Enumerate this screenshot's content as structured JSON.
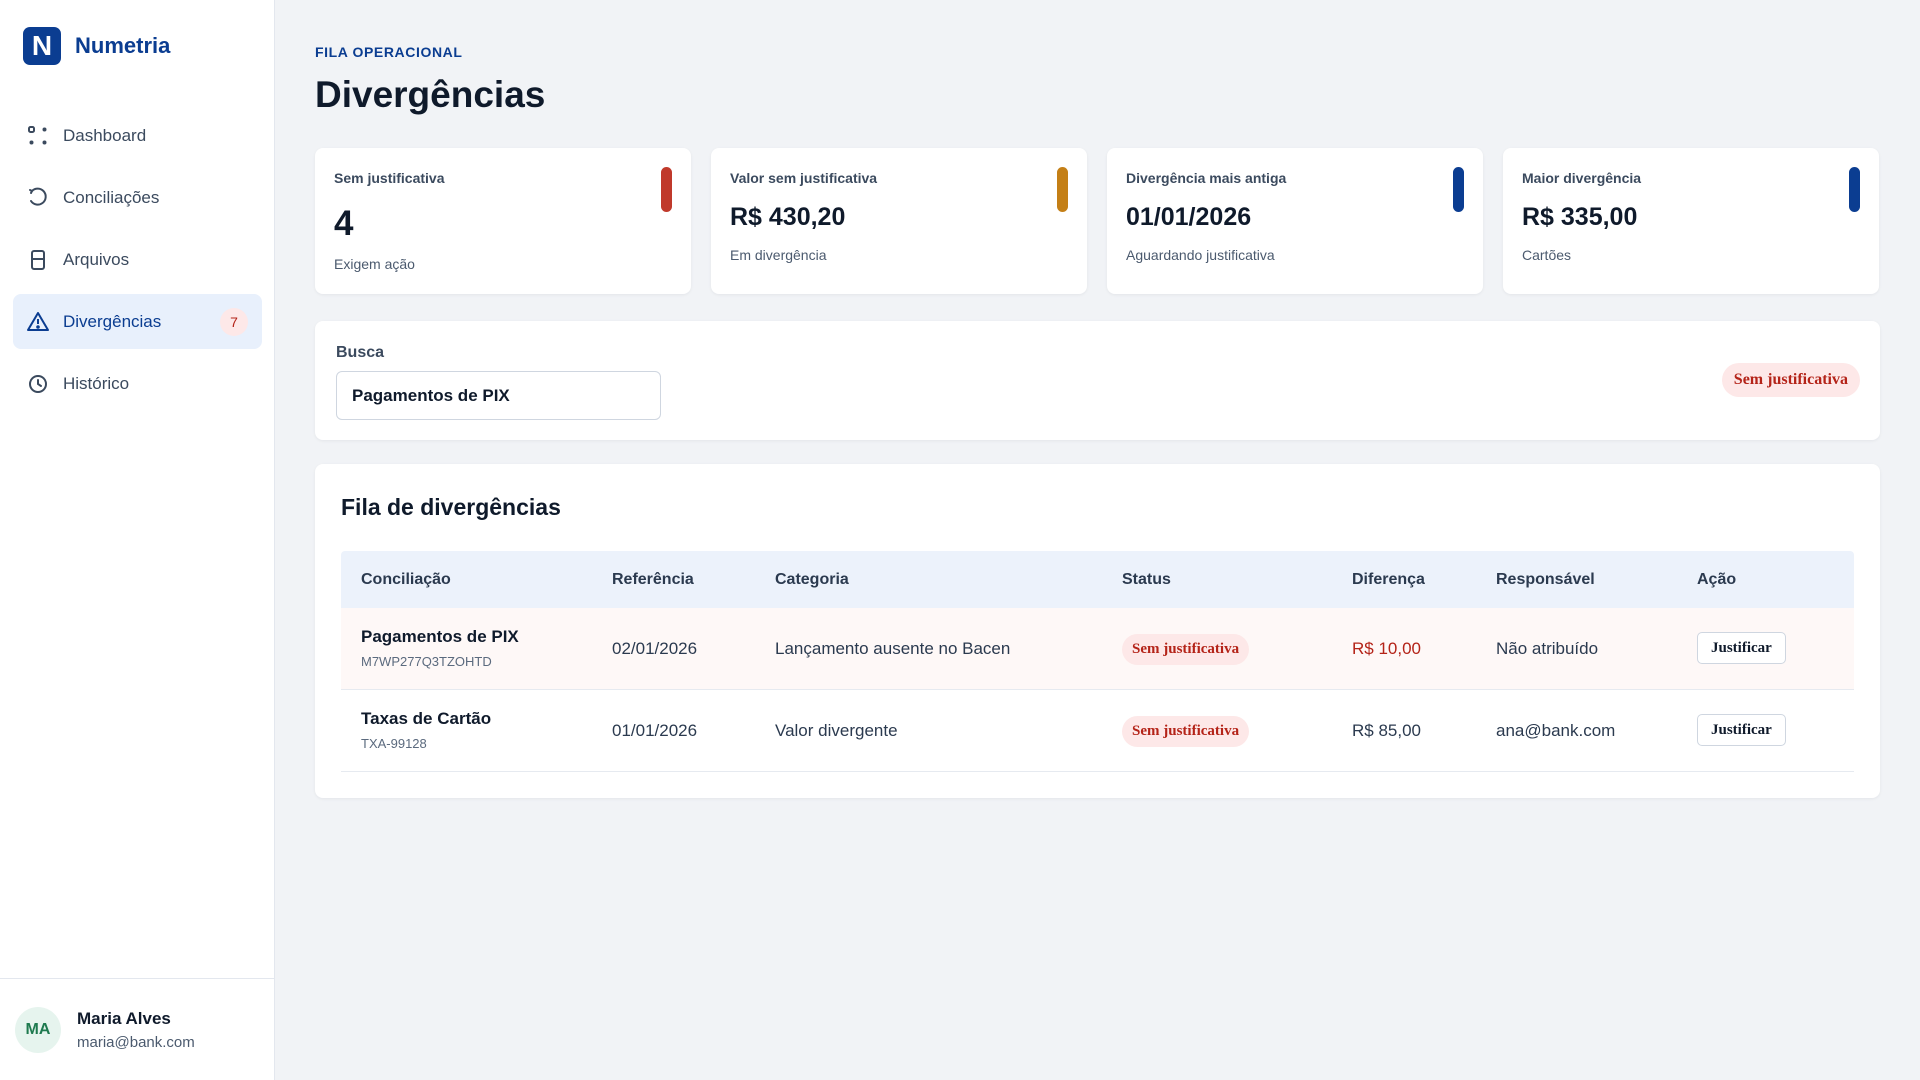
{
  "brand": {
    "mark": "N",
    "name": "Numetria"
  },
  "sidebar": {
    "items": [
      {
        "label": "Dashboard",
        "icon": "grid-icon",
        "active": false
      },
      {
        "label": "Conciliações",
        "icon": "refresh-icon",
        "active": false
      },
      {
        "label": "Arquivos",
        "icon": "file-icon",
        "active": false
      },
      {
        "label": "Divergências",
        "icon": "warning-icon",
        "active": true,
        "badge": "7"
      },
      {
        "label": "Histórico",
        "icon": "clock-icon",
        "active": false
      }
    ]
  },
  "user": {
    "initials": "MA",
    "name": "Maria Alves",
    "email": "maria@bank.com"
  },
  "header": {
    "eyebrow": "FILA OPERACIONAL",
    "title": "Divergências"
  },
  "kpis": [
    {
      "label": "Sem justificativa",
      "value": "4",
      "sub": "Exigem ação",
      "color": "#c0392b"
    },
    {
      "label": "Valor sem justificativa",
      "value": "R$ 430,20",
      "sub": "Em divergência",
      "color": "#c47f16"
    },
    {
      "label": "Divergência mais antiga",
      "value": "01/01/2026",
      "sub": "Aguardando justificativa",
      "color": "#0b3d91"
    },
    {
      "label": "Maior divergência",
      "value": "R$ 335,00",
      "sub": "Cartões",
      "color": "#0b3d91"
    }
  ],
  "filter": {
    "label": "Busca",
    "value": "Pagamentos de PIX",
    "chip": "Sem justificativa"
  },
  "queue": {
    "title": "Fila de divergências",
    "columns": [
      "Conciliação",
      "Referência",
      "Categoria",
      "Status",
      "Diferença",
      "Responsável",
      "Ação"
    ],
    "rows": [
      {
        "name": "Pagamentos de PIX",
        "code": "M7WP277Q3TZOHTD",
        "ref": "02/01/2026",
        "category": "Lançamento ausente no Bacen",
        "status": "Sem justificativa",
        "diff": "R$ 10,00",
        "owner": "Não atribuído",
        "action": "Justificar"
      },
      {
        "name": "Taxas de Cartão",
        "code": "TXA-99128",
        "ref": "01/01/2026",
        "category": "Valor divergente",
        "status": "Sem justificativa",
        "diff": "R$ 85,00",
        "owner": "ana@bank.com",
        "action": "Justificar"
      }
    ]
  }
}
